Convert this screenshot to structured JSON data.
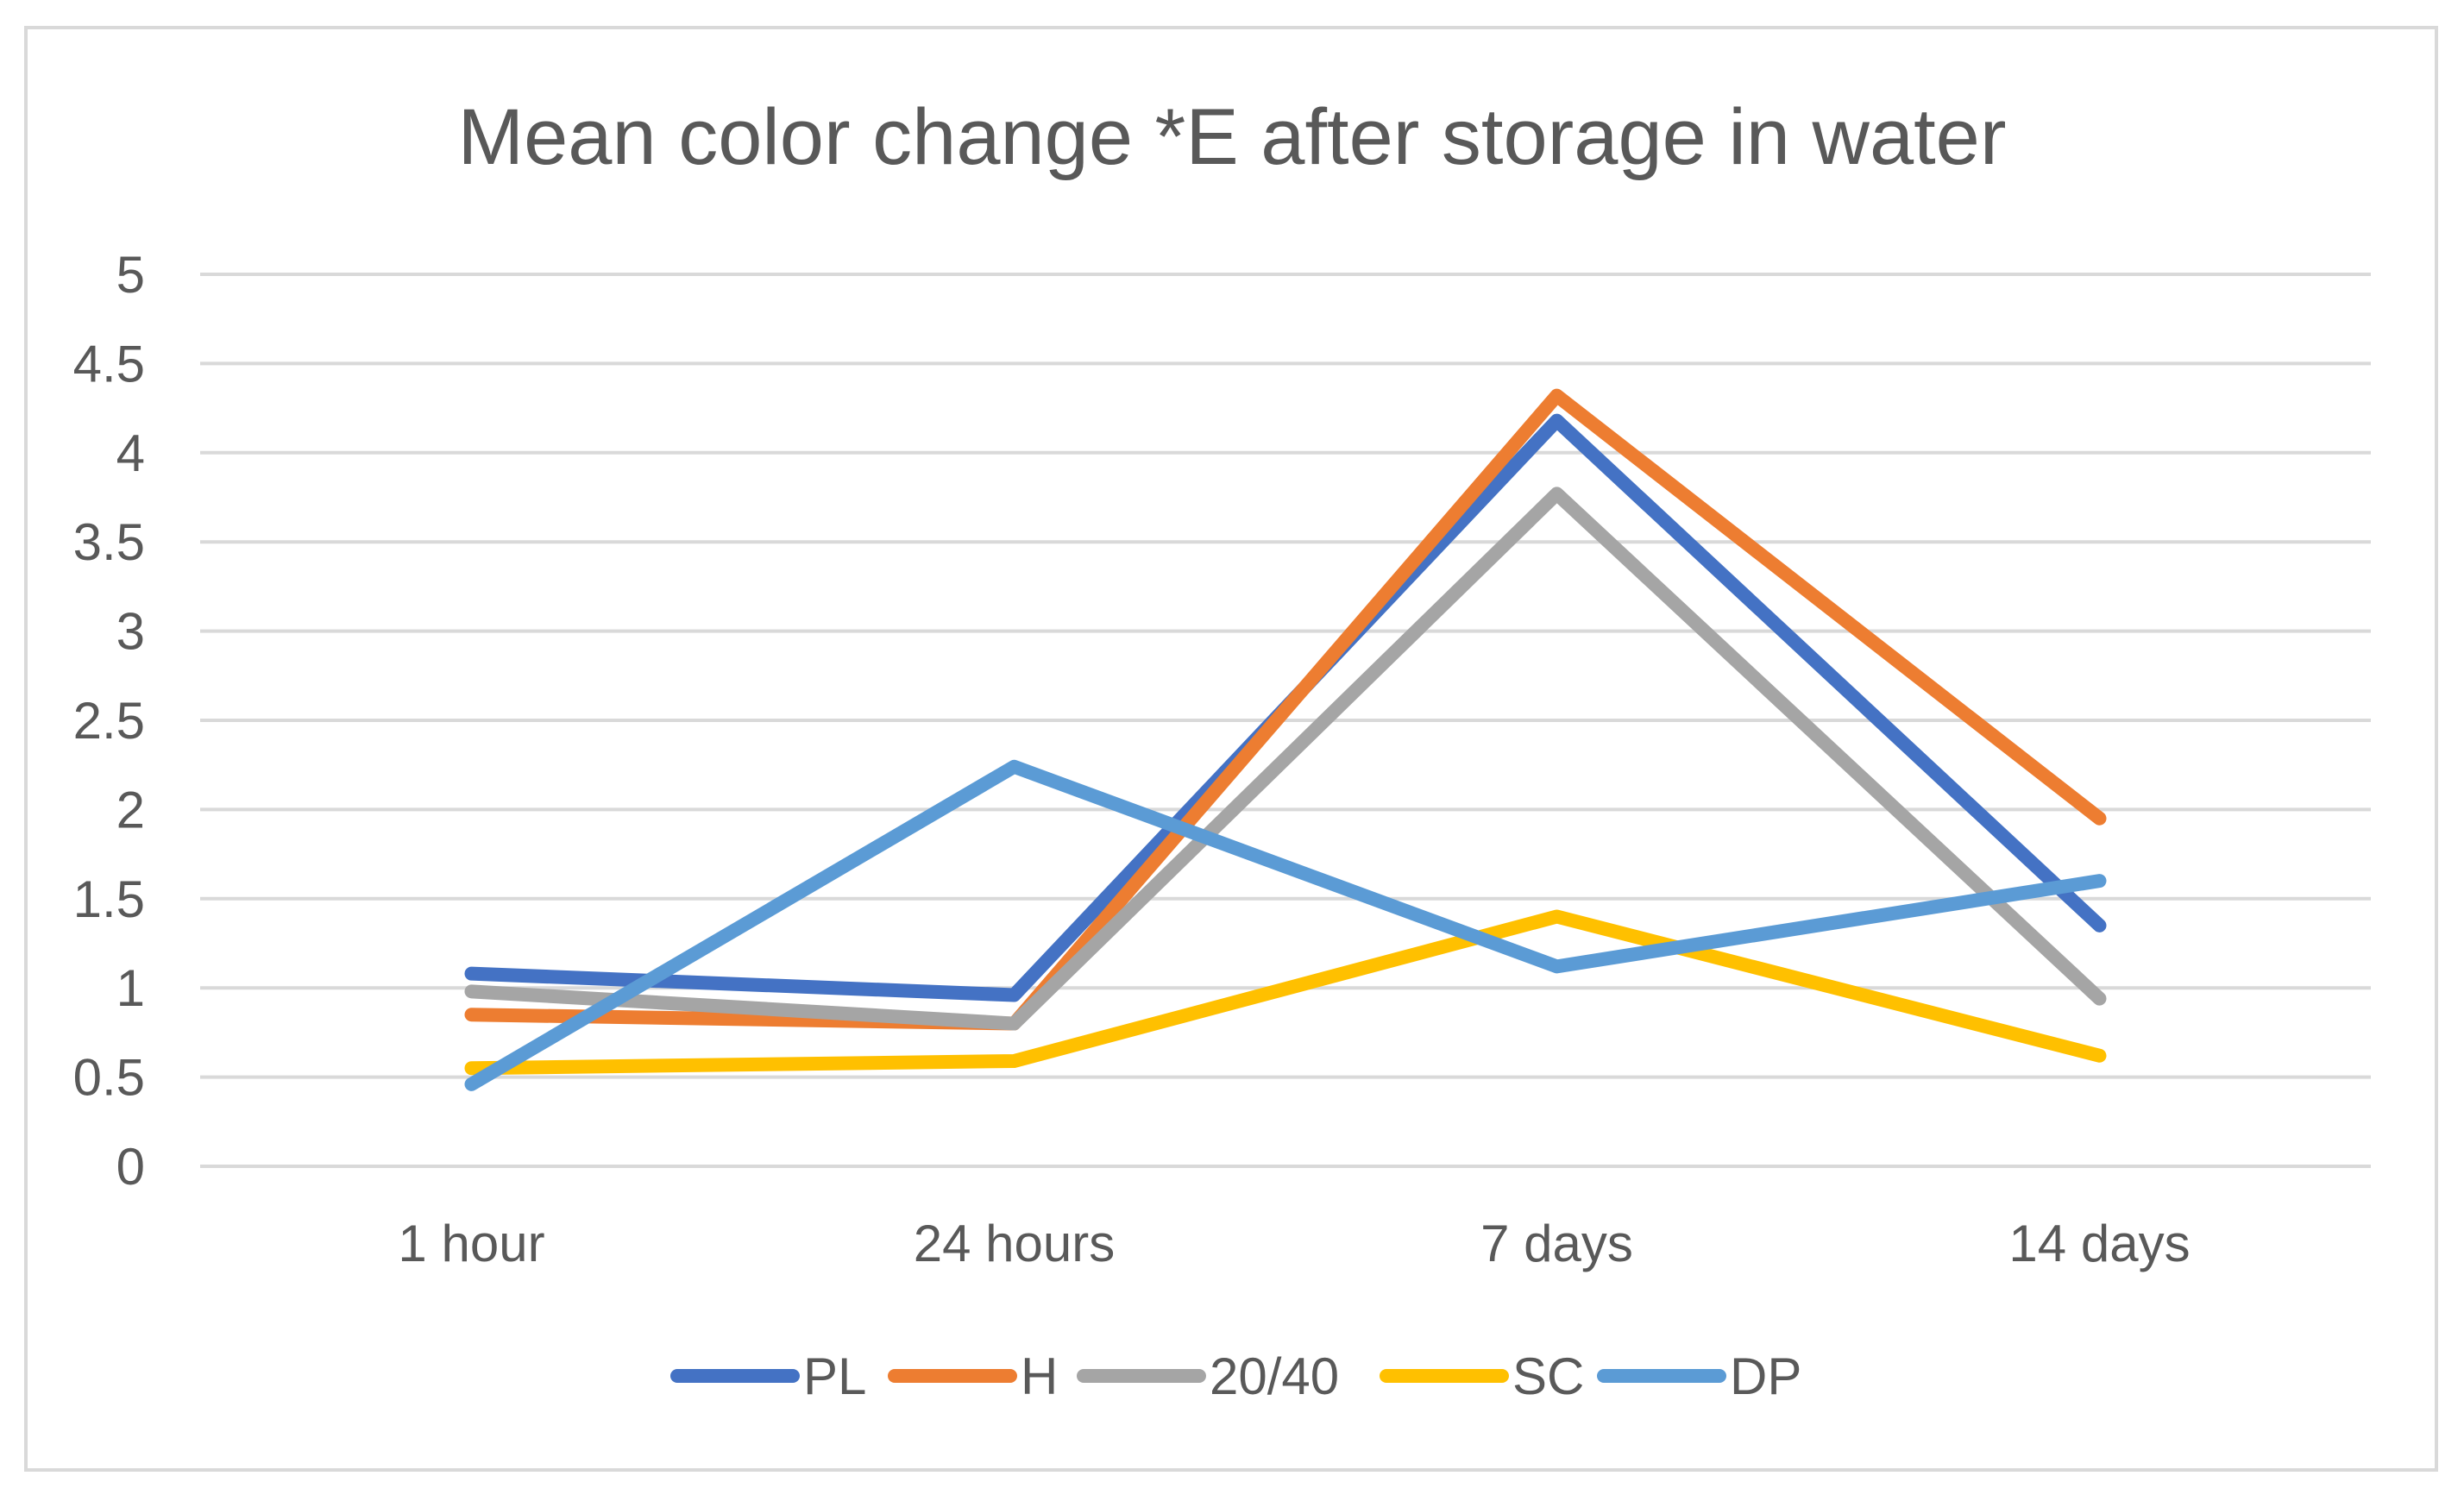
{
  "chart_data": {
    "type": "line",
    "title": "Mean color change *E after storage in water",
    "xlabel": "",
    "ylabel": "",
    "categories": [
      "1 hour",
      "24 hours",
      "7 days",
      "14 days"
    ],
    "ylim": [
      0,
      5
    ],
    "yticks": [
      0,
      0.5,
      1,
      1.5,
      2,
      2.5,
      3,
      3.5,
      4,
      4.5,
      5
    ],
    "grid": true,
    "legend_position": "bottom",
    "series": [
      {
        "name": "PL",
        "color": "#4472c4",
        "values": [
          1.08,
          0.96,
          4.18,
          1.35
        ]
      },
      {
        "name": "H",
        "color": "#ed7d31",
        "values": [
          0.85,
          0.8,
          4.32,
          1.95
        ]
      },
      {
        "name": "20/40",
        "color": "#a5a5a5",
        "values": [
          0.98,
          0.8,
          3.77,
          0.94
        ]
      },
      {
        "name": "SC",
        "color": "#ffc000",
        "values": [
          0.55,
          0.59,
          1.4,
          0.62
        ]
      },
      {
        "name": "DP",
        "color": "#5b9bd5",
        "values": [
          0.46,
          2.24,
          1.12,
          1.6
        ]
      }
    ]
  }
}
